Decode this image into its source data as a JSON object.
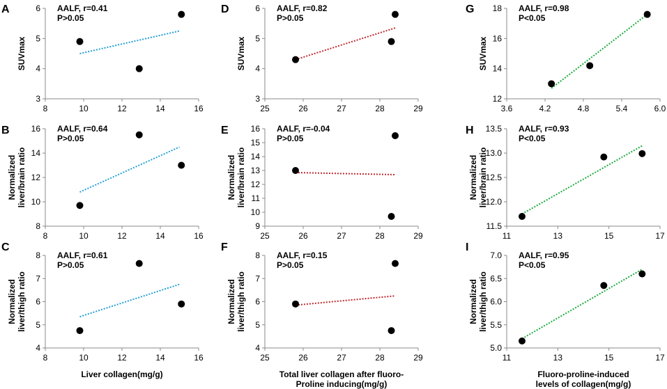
{
  "chart_data": [
    {
      "panel": "A",
      "type": "scatter",
      "x": [
        9.8,
        12.9,
        15.1
      ],
      "y": [
        4.9,
        4.0,
        5.8
      ],
      "xlim": [
        8,
        16
      ],
      "xticks": [
        8,
        10,
        12,
        14,
        16
      ],
      "ylim": [
        3,
        6
      ],
      "yticks": [
        3,
        4,
        5,
        6
      ],
      "ylabel": [
        "SUVmax"
      ],
      "annotation": [
        "AALF, r=0.41",
        "P>0.05"
      ],
      "trendline": {
        "x": [
          9.8,
          15.0
        ],
        "y": [
          4.5,
          5.25
        ],
        "color": "#1f9fd6"
      }
    },
    {
      "panel": "B",
      "type": "scatter",
      "x": [
        9.8,
        12.9,
        15.1
      ],
      "y": [
        9.7,
        15.5,
        13.0
      ],
      "xlim": [
        8,
        16
      ],
      "xticks": [
        8,
        10,
        12,
        14,
        16
      ],
      "ylim": [
        8,
        16
      ],
      "yticks": [
        8,
        10,
        12,
        14,
        16
      ],
      "ylabel": [
        "Normalized",
        "liver/brain ratio"
      ],
      "annotation": [
        "AALF, r=0.64",
        "P>0.05"
      ],
      "trendline": {
        "x": [
          9.8,
          15.0
        ],
        "y": [
          10.8,
          14.5
        ],
        "color": "#1f9fd6"
      }
    },
    {
      "panel": "C",
      "type": "scatter",
      "x": [
        9.8,
        12.9,
        15.1
      ],
      "y": [
        4.75,
        7.65,
        5.9
      ],
      "xlim": [
        8,
        16
      ],
      "xticks": [
        8,
        10,
        12,
        14,
        16
      ],
      "ylim": [
        4,
        8
      ],
      "yticks": [
        4,
        5,
        6,
        7,
        8
      ],
      "ylabel": [
        "Normalized",
        "liver/thigh ratio"
      ],
      "annotation": [
        "AALF, r=0.61",
        "P>0.05"
      ],
      "trendline": {
        "x": [
          9.8,
          15.0
        ],
        "y": [
          5.35,
          6.75
        ],
        "color": "#1f9fd6"
      },
      "xlabel": [
        "Liver collagen(mg/g)"
      ]
    },
    {
      "panel": "D",
      "type": "scatter",
      "x": [
        25.8,
        28.3,
        28.4
      ],
      "y": [
        4.3,
        4.9,
        5.8
      ],
      "xlim": [
        25,
        29
      ],
      "xticks": [
        25,
        26,
        27,
        28,
        29
      ],
      "ylim": [
        3,
        6
      ],
      "yticks": [
        3,
        4,
        5,
        6
      ],
      "ylabel": [
        "SUVmax"
      ],
      "annotation": [
        "AALF, r=0.82",
        "P>0.05"
      ],
      "trendline": {
        "x": [
          25.8,
          28.4
        ],
        "y": [
          4.3,
          5.35
        ],
        "color": "#c0282d"
      }
    },
    {
      "panel": "E",
      "type": "scatter",
      "x": [
        25.8,
        28.3,
        28.4
      ],
      "y": [
        13.0,
        9.7,
        15.5
      ],
      "xlim": [
        25,
        29
      ],
      "xticks": [
        25,
        26,
        27,
        28,
        29
      ],
      "ylim": [
        9,
        16
      ],
      "yticks": [
        9,
        10,
        11,
        12,
        13,
        14,
        15,
        16
      ],
      "ylabel": [
        "Normalized",
        "liver/brain ratio"
      ],
      "annotation": [
        "AALF, r=-0.04",
        "P>0.05"
      ],
      "trendline": {
        "x": [
          25.8,
          28.4
        ],
        "y": [
          12.85,
          12.7
        ],
        "color": "#c0282d"
      }
    },
    {
      "panel": "F",
      "type": "scatter",
      "x": [
        25.8,
        28.3,
        28.4
      ],
      "y": [
        5.9,
        4.75,
        7.65
      ],
      "xlim": [
        25,
        29
      ],
      "xticks": [
        25,
        26,
        27,
        28,
        29
      ],
      "ylim": [
        4,
        8
      ],
      "yticks": [
        4,
        5,
        6,
        7,
        8
      ],
      "ylabel": [
        "Normalized",
        "liver/thigh ratio"
      ],
      "annotation": [
        "AALF, r=0.15",
        "P>0.05"
      ],
      "trendline": {
        "x": [
          25.8,
          28.4
        ],
        "y": [
          5.85,
          6.25
        ],
        "color": "#c0282d"
      },
      "xlabel": [
        "Total liver collagen after fluoro-",
        "Proline inducing(mg/g)"
      ]
    },
    {
      "panel": "G",
      "type": "scatter",
      "x": [
        4.3,
        4.9,
        5.8
      ],
      "y": [
        13.0,
        14.2,
        17.6
      ],
      "xlim": [
        3.6,
        6
      ],
      "xticks": [
        3.6,
        4.2,
        4.8,
        5.4,
        6
      ],
      "ylim": [
        12,
        18
      ],
      "yticks": [
        12,
        14,
        16,
        18
      ],
      "ylabel": [
        "SUVmax"
      ],
      "annotation": [
        "AALF, r=0.98",
        "P<0.05"
      ],
      "trendline": {
        "x": [
          4.3,
          5.8
        ],
        "y": [
          12.7,
          17.6
        ],
        "color": "#1aaa3a"
      }
    },
    {
      "panel": "H",
      "type": "scatter",
      "x": [
        11.6,
        14.8,
        16.3
      ],
      "y": [
        11.7,
        12.92,
        12.99
      ],
      "xlim": [
        11,
        17
      ],
      "xticks": [
        11,
        13,
        15,
        17
      ],
      "ylim": [
        11.5,
        13.5
      ],
      "yticks": [
        11.5,
        12.0,
        12.5,
        13.0,
        13.5
      ],
      "ylabel": [
        "Normalized",
        "liver/brain ratio"
      ],
      "annotation": [
        "AALF, r=0.93",
        "P<0.05"
      ],
      "trendline": {
        "x": [
          11.6,
          16.3
        ],
        "y": [
          11.75,
          13.15
        ],
        "color": "#1aaa3a"
      }
    },
    {
      "panel": "I",
      "type": "scatter",
      "x": [
        11.6,
        14.8,
        16.3
      ],
      "y": [
        5.15,
        6.35,
        6.6
      ],
      "xlim": [
        11,
        17
      ],
      "xticks": [
        11,
        13,
        15,
        17
      ],
      "ylim": [
        5.0,
        7.0
      ],
      "yticks": [
        5.0,
        5.5,
        6.0,
        6.5,
        7.0
      ],
      "ylabel": [
        "Normalized",
        "liver/thigh ratio"
      ],
      "annotation": [
        "AALF, r=0.95",
        "P<0.05"
      ],
      "trendline": {
        "x": [
          11.6,
          16.3
        ],
        "y": [
          5.2,
          6.7
        ],
        "color": "#1aaa3a"
      },
      "xlabel": [
        "Fluoro-proline-induced",
        "levels of collagen(mg/g)"
      ]
    }
  ]
}
